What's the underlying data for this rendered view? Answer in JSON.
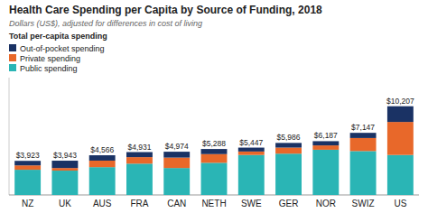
{
  "chart_data": {
    "type": "bar",
    "stacked": true,
    "title": "Health Care Spending per Capita by Source of Funding, 2018",
    "subtitle": "Dollars (US$), adjusted for differences in cost of living",
    "legend_title": "Total per-capita spending",
    "categories": [
      "NZ",
      "UK",
      "AUS",
      "FRA",
      "CAN",
      "NETH",
      "SWE",
      "GER",
      "NOR",
      "SWIZ",
      "US"
    ],
    "series": [
      {
        "name": "Public spending",
        "color": "#2ab5b5",
        "values": [
          2900,
          2800,
          3200,
          3600,
          3100,
          3700,
          4600,
          4750,
          5200,
          5050,
          4600
        ]
      },
      {
        "name": "Private spending",
        "color": "#e8682a",
        "values": [
          500,
          300,
          750,
          750,
          1200,
          1000,
          400,
          700,
          500,
          1500,
          3800
        ]
      },
      {
        "name": "Out-of-pocket spending",
        "color": "#1a3264",
        "values": [
          523,
          843,
          616,
          581,
          674,
          588,
          447,
          536,
          487,
          597,
          1807
        ]
      }
    ],
    "totals": [
      3923,
      3943,
      4566,
      4931,
      4974,
      5288,
      5447,
      5986,
      6187,
      7147,
      10207
    ],
    "total_labels": [
      "$3,923",
      "$3,943",
      "$4,566",
      "$4,931",
      "$4,974",
      "$5,288",
      "$5,447",
      "$5,986",
      "$6,187",
      "$7,147",
      "$10,207"
    ],
    "ylim": [
      0,
      13500
    ],
    "tick_labels": "x",
    "grid": false
  }
}
